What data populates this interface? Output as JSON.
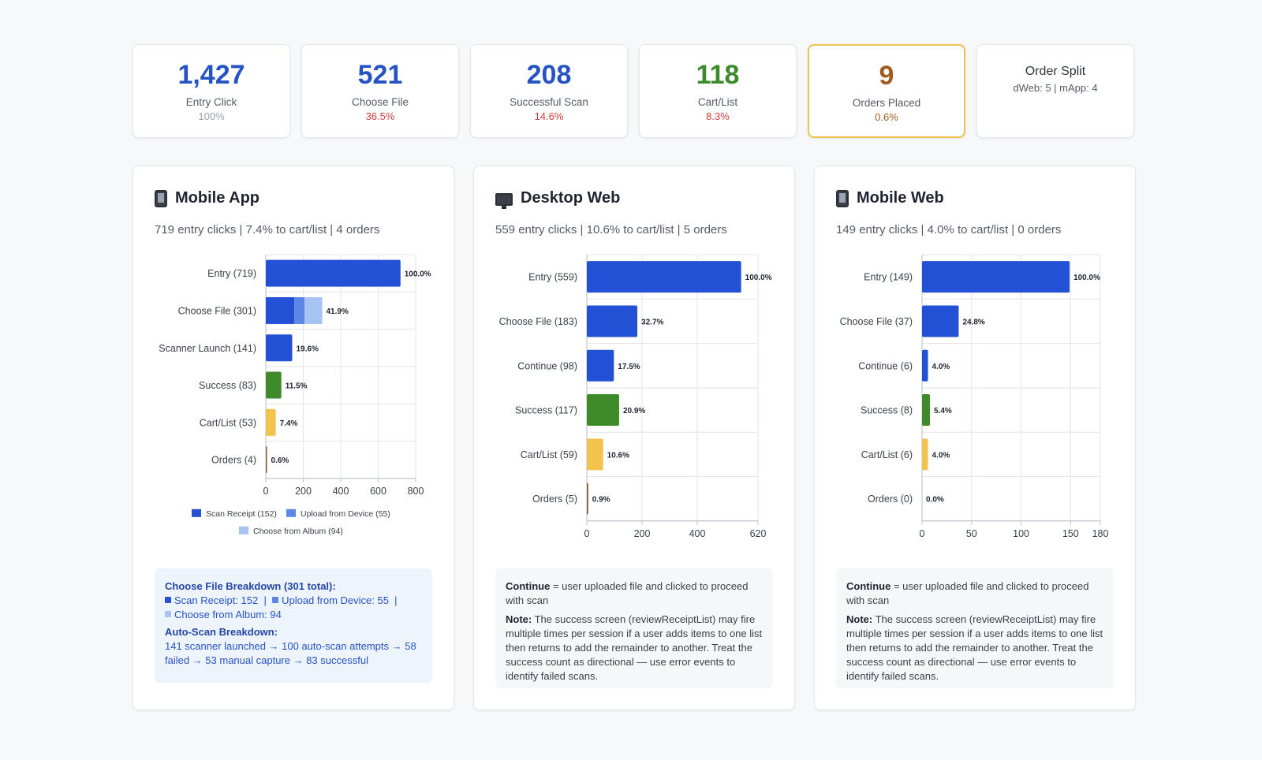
{
  "kpis": [
    {
      "value": "1,427",
      "label": "Entry Click",
      "pct": "100%",
      "color": "#2553c4",
      "pct_color": "#9aa0aa"
    },
    {
      "value": "521",
      "label": "Choose File",
      "pct": "36.5%",
      "color": "#2553c4",
      "pct_color": "#d23c3c"
    },
    {
      "value": "208",
      "label": "Successful Scan",
      "pct": "14.6%",
      "color": "#2553c4",
      "pct_color": "#d23c3c"
    },
    {
      "value": "118",
      "label": "Cart/List",
      "pct": "8.3%",
      "color": "#3b8a2c",
      "pct_color": "#d23c3c"
    },
    {
      "value": "9",
      "label": "Orders Placed",
      "pct": "0.6%",
      "color": "#a35a1e",
      "pct_color": "#a35a1e"
    }
  ],
  "order_split": {
    "title": "Order Split",
    "sub": "dWeb: 5 | mApp: 4"
  },
  "panels": [
    {
      "title": "Mobile App",
      "icon": "phone-icon",
      "subtitle": "719 entry clicks | 7.4% to cart/list | 4 orders",
      "info": {
        "heading": "Choose File Breakdown (301 total):",
        "items": [
          "Scan Receipt: 152",
          "Upload from Device: 55",
          "Choose from Album: 94"
        ],
        "sep": "|",
        "heading2": "Auto-Scan Breakdown:",
        "text2": "141 scanner launched → 100 auto-scan attempts → 58 failed → 53 manual capture → 83 successful"
      }
    },
    {
      "title": "Desktop Web",
      "icon": "monitor-icon",
      "subtitle": "559 entry clicks | 10.6% to cart/list | 5 orders",
      "info": {
        "b1": "Continue",
        "t1": " = user uploaded file and clicked to proceed with scan",
        "b2": "Note:",
        "t2": " The success screen (reviewReceiptList) may fire multiple times per session if a user adds items to one list then returns to add the remainder to another. Treat the success count as directional — use error events to identify failed scans."
      }
    },
    {
      "title": "Mobile Web",
      "icon": "phone-icon",
      "subtitle": "149 entry clicks | 4.0% to cart/list | 0 orders",
      "info": {
        "b1": "Continue",
        "t1": " = user uploaded file and clicked to proceed with scan",
        "b2": "Note:",
        "t2": " The success screen (reviewReceiptList) may fire multiple times per session if a user adds items to one list then returns to add the remainder to another. Treat the success count as directional — use error events to identify failed scans."
      }
    }
  ],
  "chart_data": [
    {
      "type": "bar",
      "orientation": "horizontal",
      "categories": [
        "Entry (719)",
        "Choose File (301)",
        "Scanner Launch (141)",
        "Success (83)",
        "Cart/List (53)",
        "Orders (4)"
      ],
      "values": [
        719,
        301,
        141,
        83,
        53,
        4
      ],
      "labels": [
        "100.0%",
        "41.9%",
        "19.6%",
        "11.5%",
        "7.4%",
        "0.6%"
      ],
      "colors": [
        "#2251d6",
        "#2251d6",
        "#2251d6",
        "#3f8a2a",
        "#f2c44e",
        "#8a5a2a"
      ],
      "stacked_segments": {
        "category": "Choose File (301)",
        "series": [
          {
            "name": "Scan Receipt (152)",
            "value": 152,
            "color": "#2251d6"
          },
          {
            "name": "Upload from Device (55)",
            "value": 55,
            "color": "#5c87e6"
          },
          {
            "name": "Choose from Album (94)",
            "value": 94,
            "color": "#a6c3f4"
          }
        ]
      },
      "xlim": [
        0,
        800
      ],
      "xticks": [
        "0",
        "200",
        "400",
        "600",
        "800"
      ],
      "legend": [
        "Scan Receipt (152)",
        "Upload from Device (55)",
        "Choose from Album (94)"
      ],
      "legend_placement": "bottom",
      "grid": true
    },
    {
      "type": "bar",
      "orientation": "horizontal",
      "categories": [
        "Entry (559)",
        "Choose File (183)",
        "Continue (98)",
        "Success (117)",
        "Cart/List (59)",
        "Orders (5)"
      ],
      "values": [
        559,
        183,
        98,
        117,
        59,
        5
      ],
      "labels": [
        "100.0%",
        "32.7%",
        "17.5%",
        "20.9%",
        "10.6%",
        "0.9%"
      ],
      "colors": [
        "#2251d6",
        "#2251d6",
        "#2251d6",
        "#3f8a2a",
        "#f2c44e",
        "#8a5a2a"
      ],
      "xlim": [
        0,
        620
      ],
      "xticks": [
        "0",
        "200",
        "400",
        "620"
      ],
      "grid": true
    },
    {
      "type": "bar",
      "orientation": "horizontal",
      "categories": [
        "Entry (149)",
        "Choose File (37)",
        "Continue (6)",
        "Success (8)",
        "Cart/List (6)",
        "Orders (0)"
      ],
      "values": [
        149,
        37,
        6,
        8,
        6,
        0
      ],
      "labels": [
        "100.0%",
        "24.8%",
        "4.0%",
        "5.4%",
        "4.0%",
        "0.0%"
      ],
      "colors": [
        "#2251d6",
        "#2251d6",
        "#2251d6",
        "#3f8a2a",
        "#f2c44e",
        "#8a5a2a"
      ],
      "xlim": [
        0,
        180
      ],
      "xticks": [
        "0",
        "50",
        "100",
        "150",
        "180"
      ],
      "grid": true
    }
  ]
}
